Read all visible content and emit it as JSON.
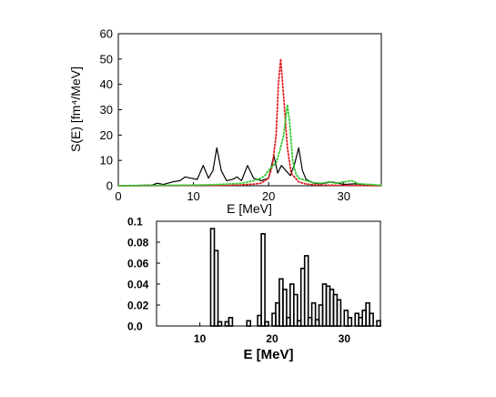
{
  "chart_data": [
    {
      "type": "line",
      "xlabel": "E [MeV]",
      "ylabel": "S(E) [fm⁴/MeV]",
      "xlim": [
        0,
        35
      ],
      "ylim": [
        0,
        60
      ],
      "x_ticks": [
        "0",
        "10",
        "20",
        "30"
      ],
      "y_ticks": [
        "0",
        "10",
        "20",
        "30",
        "40",
        "50",
        "60"
      ],
      "grid": false,
      "series": [
        {
          "style": "solid",
          "color": "#000000",
          "x": [
            0,
            4.5,
            5.2,
            6,
            7.2,
            8.2,
            8.9,
            9.7,
            10.5,
            11.3,
            12.0,
            12.6,
            13.1,
            13.7,
            14.4,
            15.2,
            15.8,
            16.4,
            17.2,
            18.0,
            19.0,
            20.0,
            20.7,
            21.2,
            21.7,
            22.3,
            22.9,
            23.5,
            24.0,
            24.5,
            25.0,
            26.0,
            27.0,
            28.5,
            30.0,
            31.5,
            33.0,
            35.0
          ],
          "y": [
            0,
            0.3,
            1.0,
            0.5,
            1.5,
            2.0,
            3.5,
            3.0,
            2.5,
            8.0,
            3.0,
            6.0,
            15.0,
            6.0,
            2.0,
            2.5,
            3.5,
            2.0,
            8.0,
            3.0,
            2.0,
            3.0,
            12.0,
            5.0,
            8.0,
            6.0,
            4.0,
            9.0,
            15.0,
            6.0,
            2.5,
            1.0,
            0.8,
            1.5,
            0.5,
            0.8,
            0.3,
            0.1
          ]
        },
        {
          "style": "dotted",
          "color": "#e02020",
          "x": [
            0,
            14,
            16,
            18,
            19,
            20,
            20.5,
            21.0,
            21.3,
            21.6,
            22.0,
            22.5,
            23.0,
            24.0,
            25.0,
            26.0,
            28.0,
            35.0
          ],
          "y": [
            0,
            0.2,
            0.3,
            0.6,
            1.0,
            3.0,
            8.0,
            20.0,
            40.0,
            50.0,
            35.0,
            15.0,
            5.0,
            1.5,
            0.7,
            0.4,
            0.2,
            0.05
          ]
        },
        {
          "style": "dotted",
          "color": "#33cc33",
          "x": [
            0,
            10,
            12,
            14,
            16,
            17,
            18,
            19,
            19.5,
            20.0,
            20.6,
            21.0,
            21.5,
            22.0,
            22.5,
            22.8,
            23.2,
            23.6,
            24.0,
            25.0,
            26.0,
            27.0,
            28.0,
            29.0,
            30.0,
            31.0,
            32.0,
            35.0
          ],
          "y": [
            0,
            0.3,
            0.4,
            0.6,
            0.9,
            1.3,
            2.0,
            3.0,
            4.0,
            6.0,
            8.0,
            9.0,
            14.0,
            20.0,
            32.0,
            25.0,
            10.0,
            5.0,
            3.0,
            2.0,
            1.2,
            1.0,
            1.5,
            1.0,
            1.5,
            2.0,
            0.8,
            0.2
          ]
        }
      ]
    },
    {
      "type": "bar",
      "subtype": "histogram-step",
      "xlabel": "E [MeV]",
      "ylabel": "",
      "xlim": [
        4,
        35
      ],
      "ylim": [
        0,
        0.1
      ],
      "x_ticks": [
        "10",
        "20",
        "30"
      ],
      "y_ticks": [
        "0.0",
        "0.02",
        "0.04",
        "0.06",
        "0.08",
        "0.1"
      ],
      "grid": false,
      "bin_width": 0.5,
      "bins": [
        {
          "x": 11.5,
          "v": 0.093
        },
        {
          "x": 12.0,
          "v": 0.072
        },
        {
          "x": 12.5,
          "v": 0.004
        },
        {
          "x": 13.5,
          "v": 0.004
        },
        {
          "x": 14.0,
          "v": 0.008
        },
        {
          "x": 16.5,
          "v": 0.005
        },
        {
          "x": 18.0,
          "v": 0.01
        },
        {
          "x": 18.5,
          "v": 0.088
        },
        {
          "x": 19.0,
          "v": 0.004
        },
        {
          "x": 20.0,
          "v": 0.012
        },
        {
          "x": 20.5,
          "v": 0.022
        },
        {
          "x": 21.0,
          "v": 0.045
        },
        {
          "x": 21.5,
          "v": 0.035
        },
        {
          "x": 22.0,
          "v": 0.008
        },
        {
          "x": 22.5,
          "v": 0.04
        },
        {
          "x": 23.0,
          "v": 0.03
        },
        {
          "x": 23.5,
          "v": 0.005
        },
        {
          "x": 24.0,
          "v": 0.055
        },
        {
          "x": 24.5,
          "v": 0.067
        },
        {
          "x": 25.0,
          "v": 0.008
        },
        {
          "x": 25.5,
          "v": 0.022
        },
        {
          "x": 26.0,
          "v": 0.006
        },
        {
          "x": 26.5,
          "v": 0.02
        },
        {
          "x": 27.0,
          "v": 0.04
        },
        {
          "x": 27.5,
          "v": 0.038
        },
        {
          "x": 28.0,
          "v": 0.035
        },
        {
          "x": 28.5,
          "v": 0.03
        },
        {
          "x": 29.0,
          "v": 0.025
        },
        {
          "x": 30.0,
          "v": 0.015
        },
        {
          "x": 30.5,
          "v": 0.008
        },
        {
          "x": 31.5,
          "v": 0.012
        },
        {
          "x": 32.0,
          "v": 0.008
        },
        {
          "x": 32.5,
          "v": 0.015
        },
        {
          "x": 33.0,
          "v": 0.022
        },
        {
          "x": 33.5,
          "v": 0.012
        },
        {
          "x": 34.5,
          "v": 0.005
        }
      ]
    }
  ]
}
